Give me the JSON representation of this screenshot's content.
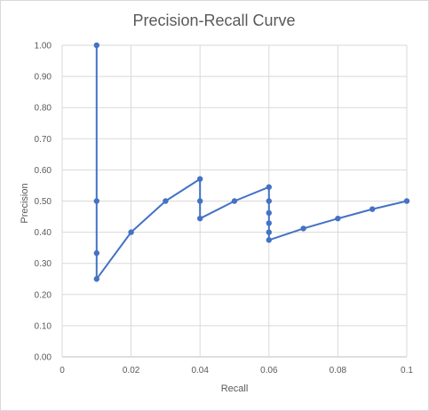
{
  "chart_data": {
    "type": "line",
    "title": "Precision-Recall Curve",
    "xlabel": "Recall",
    "ylabel": "Precision",
    "xlim": [
      0,
      0.1
    ],
    "ylim": [
      0,
      1.0
    ],
    "x_ticks": [
      "0",
      "0.02",
      "0.04",
      "0.06",
      "0.08",
      "0.1"
    ],
    "y_ticks": [
      "0.00",
      "0.10",
      "0.20",
      "0.30",
      "0.40",
      "0.50",
      "0.60",
      "0.70",
      "0.80",
      "0.90",
      "1.00"
    ],
    "grid": true,
    "legend": false,
    "series": [
      {
        "color": "#4472c4",
        "points": [
          {
            "x": 0.01,
            "y": 1.0
          },
          {
            "x": 0.01,
            "y": 0.5
          },
          {
            "x": 0.01,
            "y": 0.333
          },
          {
            "x": 0.01,
            "y": 0.25
          },
          {
            "x": 0.02,
            "y": 0.4
          },
          {
            "x": 0.03,
            "y": 0.5
          },
          {
            "x": 0.04,
            "y": 0.571
          },
          {
            "x": 0.04,
            "y": 0.5
          },
          {
            "x": 0.04,
            "y": 0.444
          },
          {
            "x": 0.05,
            "y": 0.5
          },
          {
            "x": 0.06,
            "y": 0.545
          },
          {
            "x": 0.06,
            "y": 0.5
          },
          {
            "x": 0.06,
            "y": 0.462
          },
          {
            "x": 0.06,
            "y": 0.429
          },
          {
            "x": 0.06,
            "y": 0.4
          },
          {
            "x": 0.06,
            "y": 0.375
          },
          {
            "x": 0.07,
            "y": 0.412
          },
          {
            "x": 0.08,
            "y": 0.444
          },
          {
            "x": 0.09,
            "y": 0.474
          },
          {
            "x": 0.1,
            "y": 0.5
          }
        ]
      }
    ]
  }
}
